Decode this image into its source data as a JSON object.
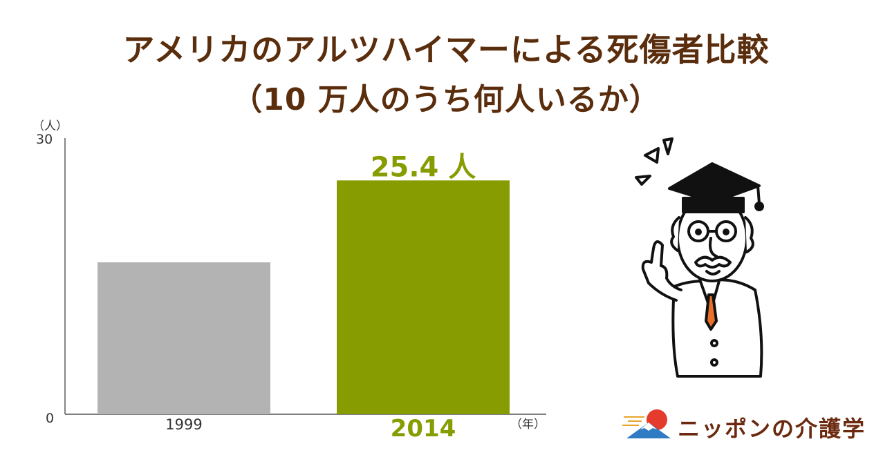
{
  "title_line1": "アメリカのアルツハイマーによる死傷者比較",
  "title_line2": "（10 万人のうち何人いるか）",
  "chart_data": {
    "type": "bar",
    "categories": [
      "1999",
      "2014"
    ],
    "values": [
      16.5,
      25.4
    ],
    "ylim": [
      0,
      30
    ],
    "y_ticks": [
      "0",
      "30"
    ],
    "y_unit": "（人）",
    "x_unit": "（年）",
    "data_labels": [
      "",
      "25.4 人"
    ],
    "colors": [
      "#b3b3b3",
      "#879c00"
    ],
    "highlight_color": "#879c00",
    "grid": false
  },
  "logo": {
    "text": "ニッポンの介護学",
    "colors": {
      "sun": "#e53b2c",
      "text": "#6b2a10",
      "wave": "#2f7bc4"
    }
  },
  "illustration": "professor-pointing-icon"
}
